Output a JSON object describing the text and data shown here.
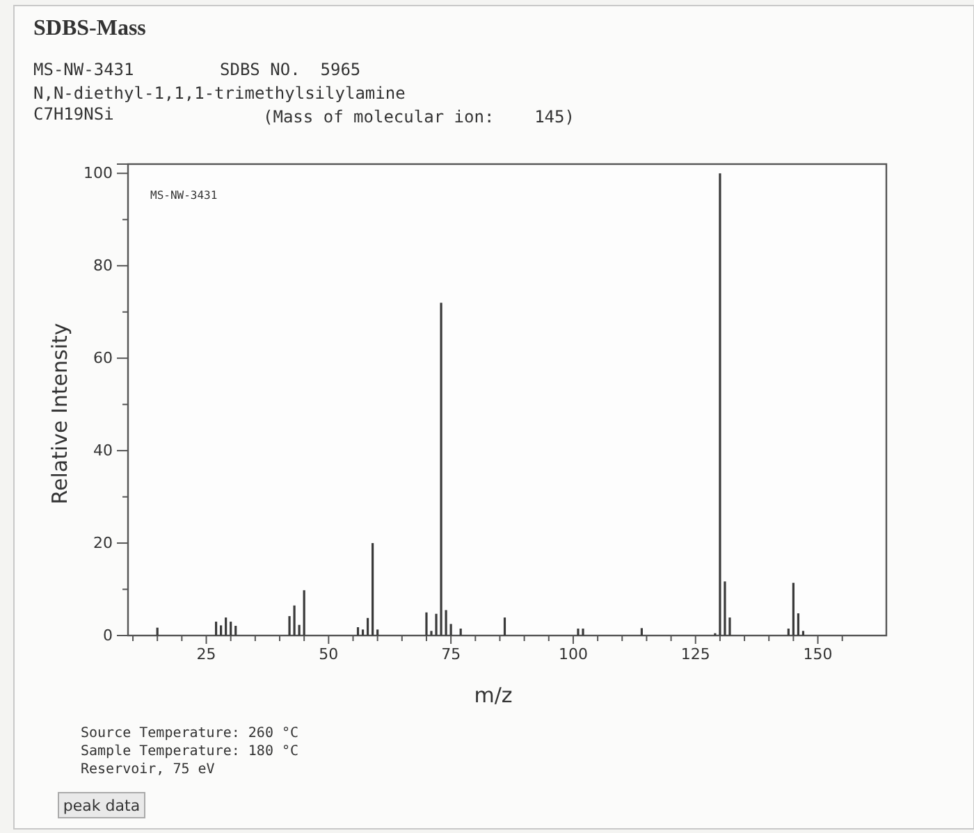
{
  "chart_data": {
    "type": "bar",
    "title": "SDBS-Mass",
    "xlabel": "m/z",
    "ylabel": "Relative Intensity",
    "color": "#3a3a3a",
    "x": [
      15,
      27,
      28,
      29,
      30,
      31,
      42,
      43,
      44,
      45,
      56,
      57,
      58,
      59,
      60,
      70,
      71,
      72,
      73,
      74,
      75,
      77,
      86,
      101,
      102,
      114,
      129,
      130,
      131,
      132,
      144,
      145,
      146,
      147
    ],
    "values": [
      1.7,
      3.0,
      2.2,
      3.9,
      3.0,
      2.1,
      4.2,
      6.5,
      2.3,
      9.8,
      1.8,
      1.3,
      3.8,
      20,
      1.3,
      5.0,
      1.0,
      4.7,
      72,
      5.5,
      2.5,
      1.5,
      3.9,
      1.5,
      1.5,
      1.6,
      0.5,
      100,
      11.7,
      3.9,
      1.5,
      11.4,
      4.8,
      1.0
    ],
    "xlim": [
      9,
      164
    ],
    "ylim": [
      0,
      102
    ],
    "xticks": [
      {
        "value": 10,
        "label": null
      },
      {
        "value": 15,
        "label": null
      },
      {
        "value": 20,
        "label": null
      },
      25,
      {
        "value": 30,
        "label": null
      },
      {
        "value": 35,
        "label": null
      },
      {
        "value": 40,
        "label": null
      },
      {
        "value": 45,
        "label": null
      },
      50,
      {
        "value": 55,
        "label": null
      },
      {
        "value": 60,
        "label": null
      },
      {
        "value": 65,
        "label": null
      },
      {
        "value": 70,
        "label": null
      },
      75,
      {
        "value": 80,
        "label": null
      },
      {
        "value": 85,
        "label": null
      },
      {
        "value": 90,
        "label": null
      },
      {
        "value": 95,
        "label": null
      },
      100,
      {
        "value": 105,
        "label": null
      },
      {
        "value": 110,
        "label": null
      },
      {
        "value": 115,
        "label": null
      },
      {
        "value": 120,
        "label": null
      },
      125,
      {
        "value": 130,
        "label": null
      },
      {
        "value": 135,
        "label": null
      },
      {
        "value": 140,
        "label": null
      },
      {
        "value": 145,
        "label": null
      },
      150,
      {
        "value": 155,
        "label": null
      }
    ],
    "yticks": [
      0,
      {
        "value": 10,
        "label": null
      },
      20,
      {
        "value": 30,
        "label": null
      },
      40,
      {
        "value": 50,
        "label": null
      },
      60,
      {
        "value": 70,
        "label": null
      },
      80,
      {
        "value": 90,
        "label": null
      },
      100
    ],
    "grid": false,
    "annotations": [
      "MS-NW-3431",
      "SDBS NO.  5965",
      "N,N-diethyl-1,1,1-trimethylsilylamine",
      "C7H19NSi",
      "(Mass of molecular ion:    145)",
      "MS-NW-3431",
      "Source Temperature: 260 °C",
      "Sample Temperature: 180 °C",
      "Reservoir, 75 eV",
      "peak data"
    ]
  }
}
